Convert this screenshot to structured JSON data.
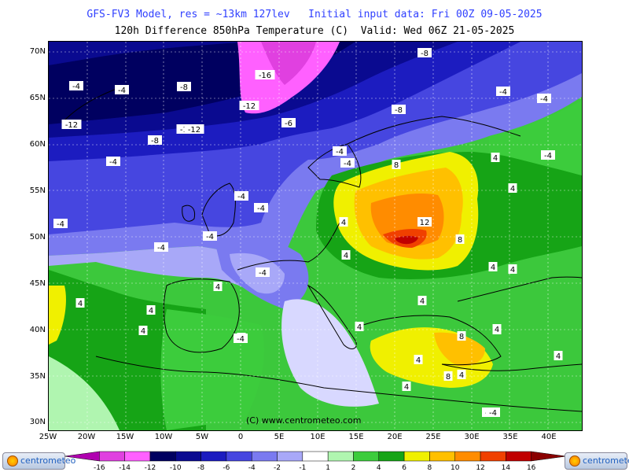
{
  "header": {
    "title_line1": "GFS-FV3 Model, res = ~13km 127lev   Initial input data: Fri 00Z 09-05-2025",
    "title_line2": "120h Difference 850hPa Temperature (C)  Valid: Wed 06Z 21-05-2025"
  },
  "map": {
    "copyright": "(C) www.centrometeo.com",
    "lat_labels": [
      "70N",
      "65N",
      "60N",
      "55N",
      "50N",
      "45N",
      "40N",
      "35N",
      "30N"
    ],
    "lon_labels": [
      "25W",
      "20W",
      "15W",
      "10W",
      "5W",
      "0",
      "5E",
      "10E",
      "15E",
      "20E",
      "25E",
      "30E",
      "35E",
      "40E"
    ],
    "contour_labels": [
      "-8",
      "-4",
      "-8",
      "-12",
      "-16",
      "-12",
      "-8",
      "-4",
      "-12",
      "-12",
      "-6",
      "-8",
      "-4",
      "-4",
      "-4",
      "-4",
      "-4",
      "-4",
      "-4",
      "-4",
      "-4",
      "-4",
      "-4",
      "-4",
      "8",
      "12",
      "8",
      "4",
      "4",
      "4",
      "4",
      "4",
      "4",
      "4",
      "4",
      "4",
      "4",
      "4",
      "4",
      "4",
      "4",
      "8",
      "8",
      "4",
      "4",
      "-4",
      "4",
      "-4",
      "-4",
      "4",
      "4"
    ]
  },
  "colorbar": {
    "ticks": [
      "-16",
      "-14",
      "-12",
      "-10",
      "-8",
      "-6",
      "-4",
      "-2",
      "-1",
      "1",
      "2",
      "4",
      "6",
      "8",
      "10",
      "12",
      "14",
      "16"
    ],
    "colors": [
      "#b000b0",
      "#e040e0",
      "#ff60ff",
      "#000060",
      "#0a0a90",
      "#1c1cc0",
      "#4646e0",
      "#7a7af0",
      "#a8a8f8",
      "#ffffff",
      "#b0f5b0",
      "#3ccc3c",
      "#16a416",
      "#f0f000",
      "#ffc000",
      "#ff8c00",
      "#f04000",
      "#c00000",
      "#8a0000"
    ]
  },
  "logos": {
    "left_text": "centrometeo",
    "right_text": "centrometeo"
  }
}
